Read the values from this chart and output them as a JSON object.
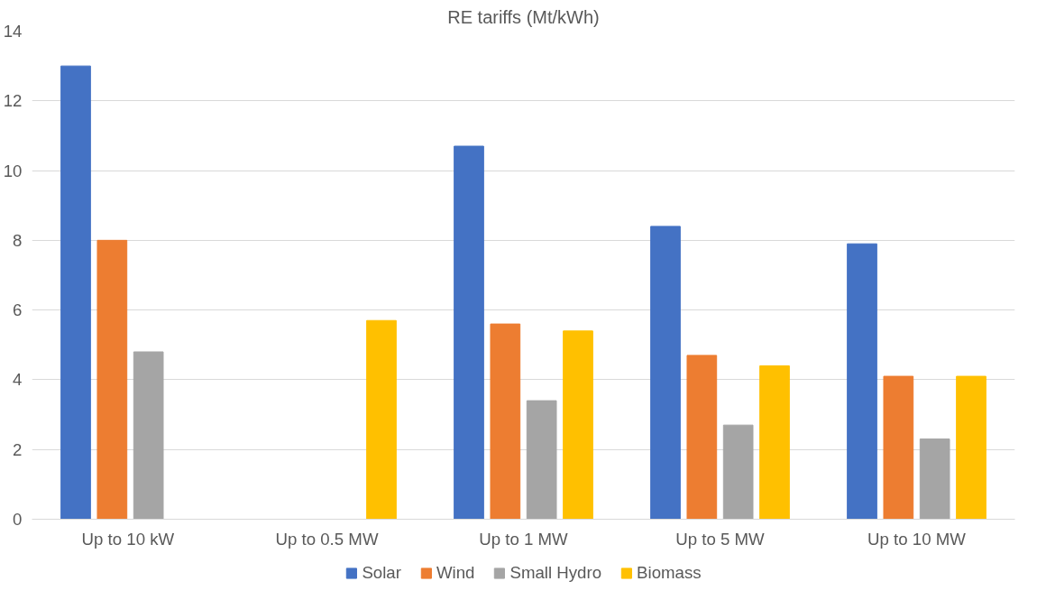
{
  "chart_data": {
    "type": "bar",
    "title": "RE tariffs (Mt/kWh)",
    "categories": [
      "Up to 10  kW",
      "Up to 0.5 MW",
      "Up to 1 MW",
      "Up to 5 MW",
      "Up to 10 MW"
    ],
    "series": [
      {
        "name": "Solar",
        "color": "#4472c4",
        "values": [
          13,
          null,
          10.7,
          8.4,
          7.9
        ]
      },
      {
        "name": "Wind",
        "color": "#ed7d31",
        "values": [
          8,
          null,
          5.6,
          4.7,
          4.1
        ]
      },
      {
        "name": "Small Hydro",
        "color": "#a5a5a5",
        "values": [
          4.8,
          null,
          3.4,
          2.7,
          2.3
        ]
      },
      {
        "name": "Biomass",
        "color": "#ffc000",
        "values": [
          null,
          5.7,
          5.4,
          4.4,
          4.1
        ]
      }
    ],
    "ylim": [
      0,
      14
    ],
    "yticks": [
      0,
      2,
      4,
      6,
      8,
      10,
      12,
      14
    ],
    "grid": "y",
    "legend": "bottom"
  }
}
